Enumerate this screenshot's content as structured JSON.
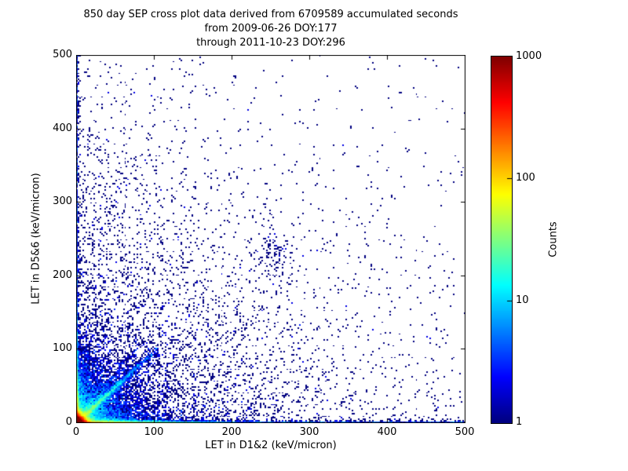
{
  "chart_data": {
    "type": "scatter",
    "subtype": "2d-histogram-density",
    "title_lines": [
      "850 day SEP cross plot data derived from 6709589 accumulated seconds",
      "from 2009-06-26 DOY:177",
      "through 2011-10-23 DOY:296"
    ],
    "xlabel": "LET in D1&2 (keV/micron)",
    "ylabel": "LET in D5&6 (keV/micron)",
    "xlim": [
      0,
      500
    ],
    "ylim": [
      0,
      500
    ],
    "xticks": [
      "0",
      "100",
      "200",
      "300",
      "400",
      "500"
    ],
    "yticks": [
      "0",
      "100",
      "200",
      "300",
      "400",
      "500"
    ],
    "grid": false,
    "colormap": "jet",
    "min_count_color": "#000080",
    "max_count_color": "#800000",
    "background_color": "#ffffff",
    "colorbar": {
      "label": "Counts",
      "scale": "log",
      "vmin": 1,
      "vmax": 1000,
      "ticks": [
        "1",
        "10",
        "100",
        "1000"
      ]
    },
    "bin_size_data_units": 2,
    "seed": 177,
    "density_components": [
      {
        "name": "origin-hotspot",
        "n": 60000,
        "x": {
          "dist": "exp",
          "scale": 3
        },
        "y": {
          "dist": "exp",
          "scale": 3
        }
      },
      {
        "name": "lower-left-fan",
        "n": 7000,
        "x": {
          "dist": "exp",
          "scale": 28
        },
        "y": {
          "dist": "exp",
          "scale": 28
        }
      },
      {
        "name": "bottom-edge-band",
        "n": 5000,
        "x": {
          "dist": "exp",
          "scale": 55
        },
        "y": {
          "dist": "exp",
          "scale": 1.2
        }
      },
      {
        "name": "bottom-edge-band-far",
        "n": 950,
        "x": {
          "dist": "uniform",
          "min": 0,
          "max": 500
        },
        "y": {
          "dist": "exp",
          "scale": 1.1
        }
      },
      {
        "name": "left-edge-band",
        "n": 3200,
        "x": {
          "dist": "exp",
          "scale": 1.2
        },
        "y": {
          "dist": "exp",
          "scale": 30
        }
      },
      {
        "name": "left-edge-band-far",
        "n": 800,
        "x": {
          "dist": "exp",
          "scale": 1.1
        },
        "y": {
          "dist": "uniform",
          "min": 0,
          "max": 500
        }
      },
      {
        "name": "proton-diagonal-core",
        "type": "diagonal",
        "n": 1400,
        "scale": 30,
        "tmax": 105,
        "sigma": 1.2,
        "slope": 0.97
      },
      {
        "name": "proton-diagonal-spread",
        "type": "diagonal",
        "n": 1700,
        "scale": 45,
        "tmax": 105,
        "sigma": 3.5,
        "slope": 0.95
      },
      {
        "name": "secondary-diagonal",
        "type": "diagonal",
        "n": 550,
        "scale": 30,
        "tmax": 90,
        "sigma": 3.0,
        "slope": 1.3
      },
      {
        "name": "background-scatter",
        "n": 5200,
        "x": {
          "dist": "exp",
          "scale": 140
        },
        "y": {
          "dist": "exp",
          "scale": 140
        }
      },
      {
        "name": "sparse-uniform-scatter",
        "n": 260,
        "x": {
          "dist": "uniform",
          "min": 0,
          "max": 500
        },
        "y": {
          "dist": "uniform",
          "min": 0,
          "max": 500
        }
      },
      {
        "name": "mid-cluster",
        "type": "gauss",
        "n": 95,
        "cx": 250,
        "cy": 228,
        "sx": 17,
        "sy": 15
      }
    ]
  }
}
